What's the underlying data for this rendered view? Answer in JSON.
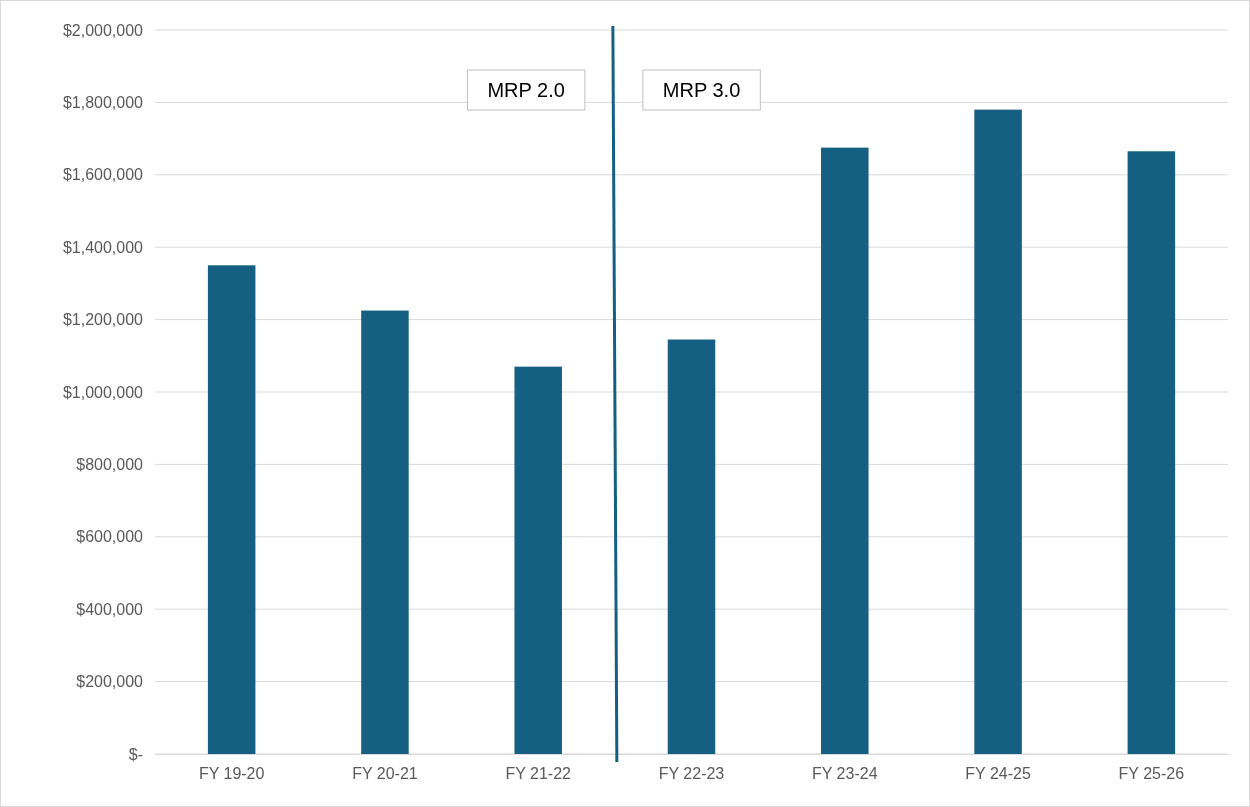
{
  "chart_data": {
    "type": "bar",
    "categories": [
      "FY 19-20",
      "FY 20-21",
      "FY 21-22",
      "FY 22-23",
      "FY 23-24",
      "FY 24-25",
      "FY 25-26"
    ],
    "values": [
      1350000,
      1225000,
      1070000,
      1145000,
      1675000,
      1780000,
      1665000
    ],
    "color": "#156082",
    "ylim": [
      0,
      2000000
    ],
    "yticks": [
      {
        "value": 0,
        "label": "$-"
      },
      {
        "value": 200000,
        "label": "$200,000"
      },
      {
        "value": 400000,
        "label": "$400,000"
      },
      {
        "value": 600000,
        "label": "$600,000"
      },
      {
        "value": 800000,
        "label": "$800,000"
      },
      {
        "value": 1000000,
        "label": "$1,000,000"
      },
      {
        "value": 1200000,
        "label": "$1,200,000"
      },
      {
        "value": 1400000,
        "label": "$1,400,000"
      },
      {
        "value": 1600000,
        "label": "$1,600,000"
      },
      {
        "value": 1800000,
        "label": "$1,800,000"
      },
      {
        "value": 2000000,
        "label": "$2,000,000"
      }
    ],
    "grid": "y",
    "annotations": [
      "MRP 2.0",
      "MRP 3.0"
    ]
  }
}
